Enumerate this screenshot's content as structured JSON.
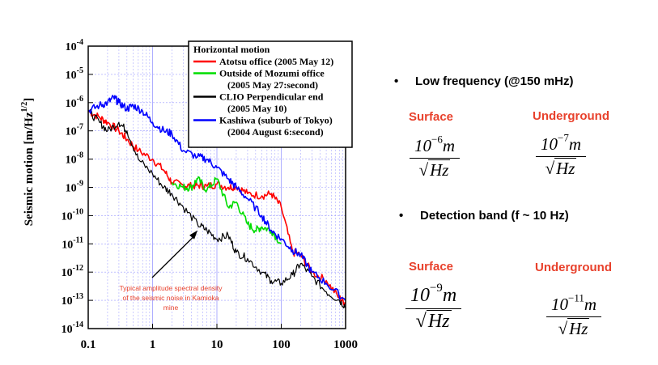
{
  "chart_data": {
    "type": "line",
    "ylabel": "Seismic motion [m/Hz",
    "ylabel_exp": "1/2",
    "ylabel_end": "]",
    "xscale": "log",
    "yscale": "log",
    "xlim": [
      0.1,
      1000
    ],
    "ylim": [
      1e-14,
      0.0001
    ],
    "xticks": [
      {
        "v": 0.1,
        "label": "0.1"
      },
      {
        "v": 1,
        "label": "1"
      },
      {
        "v": 10,
        "label": "10"
      },
      {
        "v": 100,
        "label": "100"
      },
      {
        "v": 1000,
        "label": "1000"
      }
    ],
    "yticks": [
      {
        "v": -4,
        "base": "10",
        "exp": "-4"
      },
      {
        "v": -5,
        "base": "10",
        "exp": "-5"
      },
      {
        "v": -6,
        "base": "10",
        "exp": "-6"
      },
      {
        "v": -7,
        "base": "10",
        "exp": "-7"
      },
      {
        "v": -8,
        "base": "10",
        "exp": "-8"
      },
      {
        "v": -9,
        "base": "10",
        "exp": "-9"
      },
      {
        "v": -10,
        "base": "10",
        "exp": "-10"
      },
      {
        "v": -11,
        "base": "10",
        "exp": "-11"
      },
      {
        "v": -12,
        "base": "10",
        "exp": "-12"
      },
      {
        "v": -13,
        "base": "10",
        "exp": "-13"
      },
      {
        "v": -14,
        "base": "10",
        "exp": "-14"
      }
    ],
    "grid": true,
    "legend_title": "Horizontal motion",
    "legend_position": "top-right",
    "series": [
      {
        "name": "Atotsu office  (2005 May 12)",
        "color": "#ff0000",
        "legend_lines": [
          "Atotsu office  (2005 May 12)"
        ],
        "x": [
          0.1,
          0.15,
          0.2,
          0.3,
          0.4,
          0.6,
          1,
          1.5,
          2,
          3,
          4,
          5,
          7,
          10,
          15,
          20,
          30,
          50,
          70,
          100,
          150,
          200,
          300,
          500,
          800,
          1000
        ],
        "y": [
          5e-07,
          3e-07,
          2e-07,
          1e-07,
          5e-08,
          2e-08,
          1e-08,
          4e-09,
          1.5e-09,
          1.2e-09,
          1.1e-09,
          1.2e-09,
          1.1e-09,
          1.3e-09,
          1e-09,
          1.1e-09,
          6e-10,
          5e-10,
          6e-10,
          2e-10,
          5e-12,
          4e-12,
          1e-12,
          5e-13,
          1.2e-13,
          8e-14
        ]
      },
      {
        "name": "Outside of Mozumi office (2005 May 27:second)",
        "color": "#00dd00",
        "legend_lines": [
          "Outside of Mozumi office",
          "(2005 May 27:second)"
        ],
        "x": [
          2,
          3,
          4,
          5,
          7,
          10,
          15,
          20,
          30,
          40,
          50,
          70,
          100
        ],
        "y": [
          1.5e-09,
          1e-09,
          1e-09,
          2e-09,
          8e-10,
          2e-09,
          2e-10,
          3e-10,
          5e-11,
          3e-11,
          4e-11,
          3e-11,
          1e-11
        ]
      },
      {
        "name": "CLIO Perpendicular end (2005 May 10)",
        "color": "#000000",
        "legend_lines": [
          "CLIO Perpendicular end",
          "(2005 May 10)"
        ],
        "x": [
          0.1,
          0.15,
          0.2,
          0.3,
          0.4,
          0.6,
          1,
          1.5,
          2,
          3,
          5,
          7,
          10,
          15,
          20,
          30,
          50,
          70,
          100,
          150,
          200,
          300,
          500,
          800,
          1000
        ],
        "y": [
          5e-07,
          2e-07,
          1e-07,
          2e-07,
          1e-07,
          1e-08,
          3e-09,
          1e-09,
          6e-10,
          2e-10,
          5e-11,
          3e-11,
          1.5e-11,
          2e-11,
          5e-12,
          3e-12,
          1e-12,
          5e-13,
          4e-13,
          8e-13,
          2e-12,
          7e-13,
          2e-13,
          1e-13,
          6e-14
        ]
      },
      {
        "name": "Kashiwa (suburb of Tokyo) (2004 August 6:second)",
        "color": "#0000ff",
        "legend_lines": [
          "Kashiwa (suburb of Tokyo)",
          "(2004 August 6:second)"
        ],
        "x": [
          0.1,
          0.15,
          0.2,
          0.25,
          0.3,
          0.4,
          0.5,
          0.7,
          1,
          1.5,
          2,
          3,
          5,
          7,
          10,
          15,
          20,
          30,
          50,
          70,
          100,
          150,
          200,
          300,
          500,
          1000
        ],
        "y": [
          5e-07,
          8e-07,
          1e-06,
          1.5e-06,
          1e-06,
          6e-07,
          8e-07,
          5e-07,
          2e-07,
          1e-07,
          8e-08,
          2e-08,
          1.2e-08,
          1e-08,
          5e-09,
          2e-09,
          1e-09,
          4e-10,
          1e-10,
          3e-11,
          1.5e-11,
          6e-12,
          4e-12,
          1e-12,
          4e-13,
          1e-13
        ]
      }
    ],
    "annotation": {
      "lines": [
        "Typical amplitude spectral density",
        "of the seismic noise in Kamioka",
        "mine"
      ],
      "arrow_to_x": 5,
      "arrow_to_y": 3e-11,
      "color": "#e8412c"
    }
  },
  "bullets": [
    {
      "dot": "•",
      "text": "Low frequency (@150 mHz)"
    },
    {
      "dot": "•",
      "text": "Detection band (f ~ 10 Hz)"
    }
  ],
  "sections": [
    {
      "left_title": "Surface",
      "right_title": "Underground",
      "left_exp": "−6",
      "right_exp": "−7"
    },
    {
      "left_title": "Surface",
      "right_title": "Underground",
      "left_exp": "−9",
      "right_exp": "−11"
    }
  ],
  "formula": {
    "base": "10",
    "unit": "m",
    "radical": "√",
    "denominator": "Hz"
  },
  "colors": {
    "accent": "#e8412c",
    "grid": "#9a9aff"
  }
}
